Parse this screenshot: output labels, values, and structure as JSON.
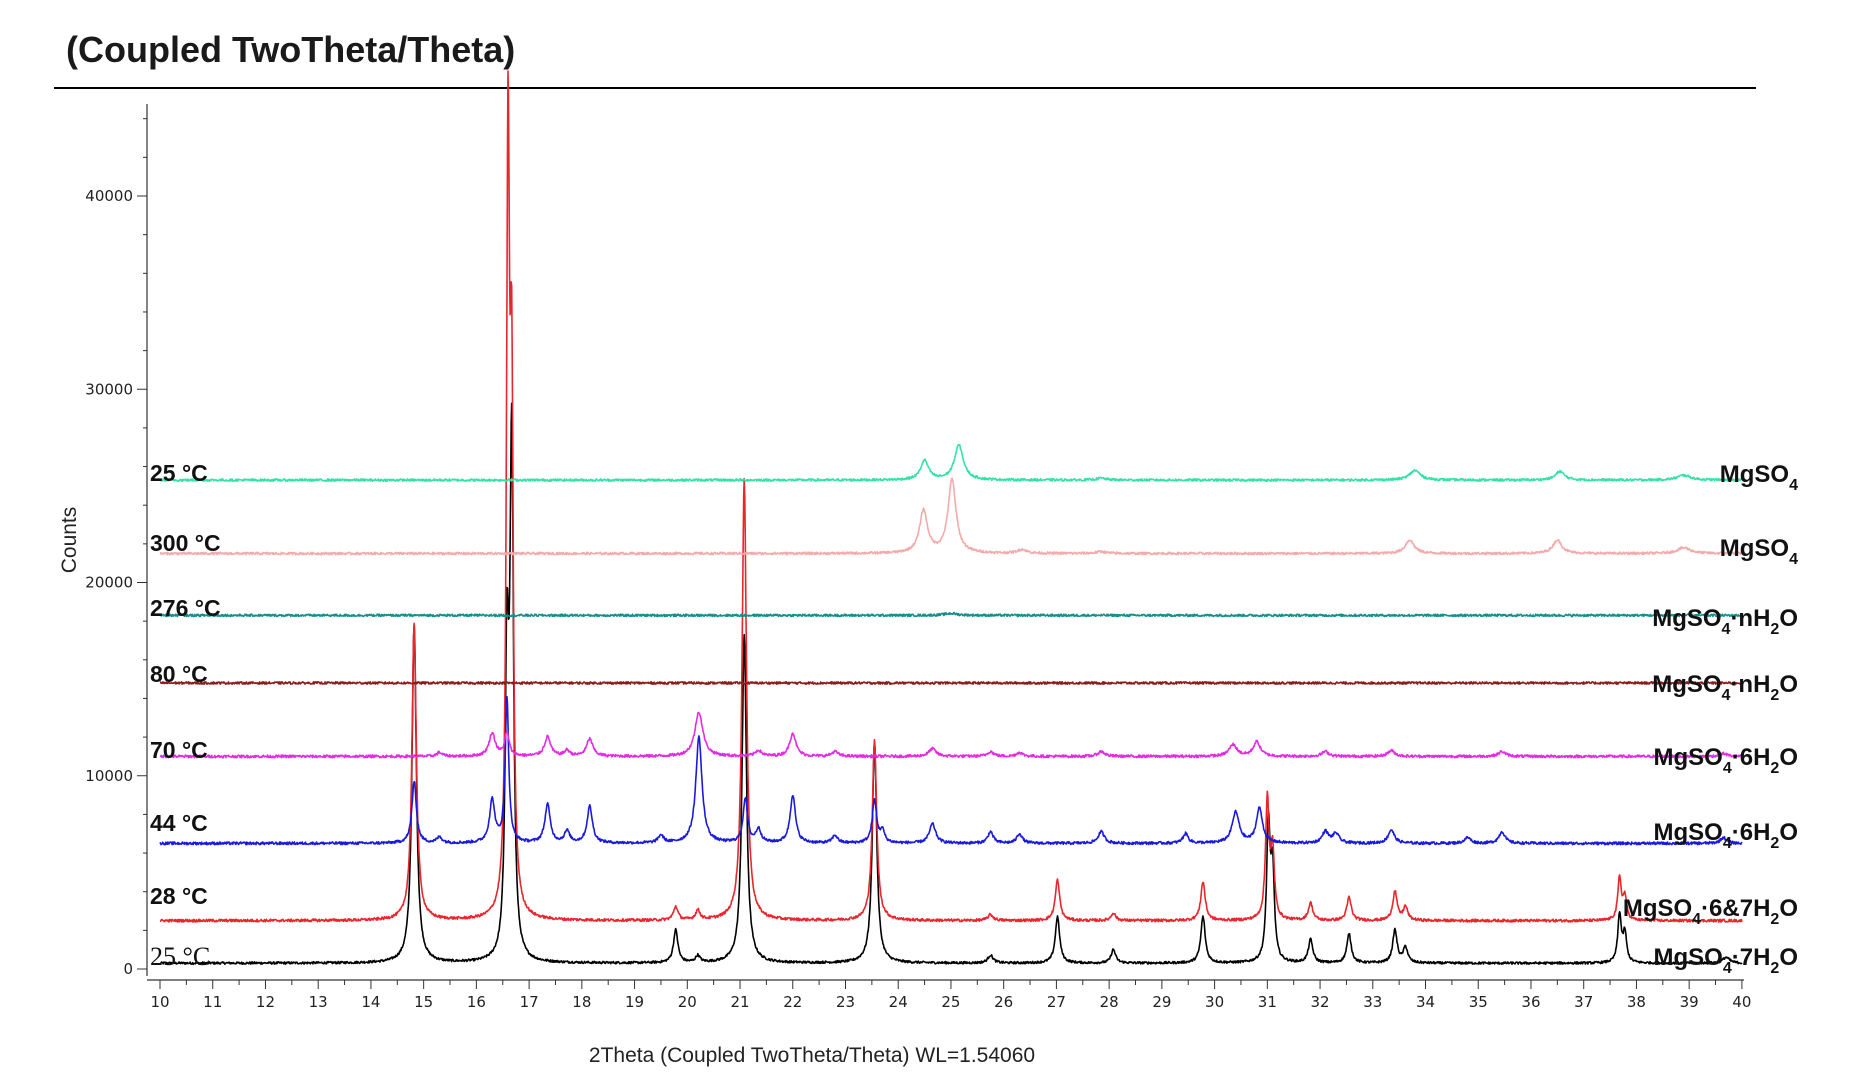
{
  "chart_data": {
    "type": "line",
    "title": "(Coupled TwoTheta/Theta)",
    "xlabel": "2Theta (Coupled TwoTheta/Theta) WL=1.54060",
    "ylabel": "Counts",
    "xlim": [
      10,
      40
    ],
    "ylim": [
      0,
      44000
    ],
    "x_ticks": [
      10,
      11,
      12,
      13,
      14,
      15,
      16,
      17,
      18,
      19,
      20,
      21,
      22,
      23,
      24,
      25,
      26,
      27,
      28,
      29,
      30,
      31,
      32,
      33,
      34,
      35,
      36,
      37,
      38,
      39,
      40
    ],
    "y_ticks": [
      0,
      10000,
      20000,
      30000,
      40000
    ],
    "y_tick_labels": [
      "0",
      "10000",
      "20000",
      "30000",
      "40000"
    ],
    "grid": false,
    "legend": "none",
    "series": [
      {
        "temperature": "25 °C",
        "phase": "MgSO₄·7H₂O",
        "color": "#000000",
        "baseline": 300,
        "noise": 60,
        "peaks": [
          [
            14.82,
            17500,
            0.05
          ],
          [
            16.58,
            15000,
            0.04
          ],
          [
            16.67,
            26500,
            0.04
          ],
          [
            19.78,
            1700,
            0.05
          ],
          [
            20.2,
            350,
            0.05
          ],
          [
            21.08,
            17000,
            0.05
          ],
          [
            23.55,
            11500,
            0.05
          ],
          [
            25.75,
            400,
            0.06
          ],
          [
            27.02,
            2400,
            0.05
          ],
          [
            28.08,
            700,
            0.05
          ],
          [
            29.78,
            2400,
            0.05
          ],
          [
            31.02,
            7000,
            0.04
          ],
          [
            31.1,
            4500,
            0.04
          ],
          [
            31.82,
            1200,
            0.05
          ],
          [
            32.55,
            1500,
            0.05
          ],
          [
            33.42,
            1700,
            0.05
          ],
          [
            33.62,
            800,
            0.05
          ],
          [
            37.68,
            2500,
            0.04
          ],
          [
            37.78,
            1500,
            0.04
          ],
          [
            39.7,
            300,
            0.08
          ]
        ]
      },
      {
        "temperature": "28 °C",
        "phase": "MgSO₄·6&7H₂O",
        "color": "#e8262c",
        "baseline": 2500,
        "noise": 70,
        "peaks": [
          [
            14.82,
            15300,
            0.05
          ],
          [
            16.6,
            39000,
            0.035
          ],
          [
            16.67,
            25000,
            0.035
          ],
          [
            19.78,
            700,
            0.05
          ],
          [
            20.2,
            500,
            0.05
          ],
          [
            21.08,
            22800,
            0.05
          ],
          [
            23.55,
            9300,
            0.05
          ],
          [
            25.75,
            300,
            0.06
          ],
          [
            27.02,
            2100,
            0.05
          ],
          [
            28.08,
            400,
            0.05
          ],
          [
            29.78,
            2000,
            0.05
          ],
          [
            31.0,
            6200,
            0.04
          ],
          [
            31.1,
            3500,
            0.04
          ],
          [
            31.82,
            900,
            0.05
          ],
          [
            32.55,
            1200,
            0.05
          ],
          [
            33.42,
            1500,
            0.05
          ],
          [
            33.62,
            700,
            0.05
          ],
          [
            37.68,
            2200,
            0.04
          ],
          [
            37.78,
            1200,
            0.04
          ]
        ]
      },
      {
        "temperature": "44 °C",
        "phase": "MgSO₄·6H₂O",
        "color": "#1a1adb",
        "baseline": 6500,
        "noise": 70,
        "peaks": [
          [
            14.82,
            3200,
            0.05
          ],
          [
            15.3,
            300,
            0.06
          ],
          [
            16.3,
            2200,
            0.06
          ],
          [
            16.58,
            7500,
            0.04
          ],
          [
            17.35,
            2000,
            0.06
          ],
          [
            17.72,
            600,
            0.06
          ],
          [
            18.15,
            1900,
            0.06
          ],
          [
            19.5,
            400,
            0.06
          ],
          [
            20.22,
            5500,
            0.07
          ],
          [
            21.1,
            2300,
            0.05
          ],
          [
            21.35,
            700,
            0.06
          ],
          [
            22.0,
            2500,
            0.06
          ],
          [
            22.8,
            400,
            0.06
          ],
          [
            23.55,
            2200,
            0.05
          ],
          [
            23.7,
            600,
            0.05
          ],
          [
            24.65,
            1000,
            0.07
          ],
          [
            25.75,
            600,
            0.06
          ],
          [
            26.3,
            500,
            0.06
          ],
          [
            27.85,
            600,
            0.07
          ],
          [
            29.45,
            500,
            0.06
          ],
          [
            30.4,
            1600,
            0.08
          ],
          [
            30.85,
            1800,
            0.07
          ],
          [
            32.1,
            600,
            0.07
          ],
          [
            32.3,
            500,
            0.07
          ],
          [
            33.35,
            700,
            0.07
          ],
          [
            34.8,
            300,
            0.07
          ],
          [
            35.45,
            600,
            0.07
          ],
          [
            39.65,
            300,
            0.07
          ]
        ]
      },
      {
        "temperature": "70 °C",
        "phase": "MgSO₄·6H₂O",
        "color": "#e12ce1",
        "baseline": 11000,
        "noise": 70,
        "peaks": [
          [
            15.3,
            200,
            0.06
          ],
          [
            16.3,
            1200,
            0.07
          ],
          [
            16.58,
            1200,
            0.05
          ],
          [
            17.35,
            1000,
            0.07
          ],
          [
            17.72,
            300,
            0.06
          ],
          [
            18.15,
            900,
            0.07
          ],
          [
            20.22,
            2300,
            0.09
          ],
          [
            21.35,
            300,
            0.07
          ],
          [
            22.0,
            1200,
            0.07
          ],
          [
            22.8,
            250,
            0.07
          ],
          [
            24.65,
            400,
            0.08
          ],
          [
            25.75,
            250,
            0.07
          ],
          [
            26.3,
            200,
            0.07
          ],
          [
            27.85,
            250,
            0.08
          ],
          [
            30.35,
            600,
            0.09
          ],
          [
            30.8,
            750,
            0.08
          ],
          [
            32.1,
            250,
            0.08
          ],
          [
            33.35,
            300,
            0.08
          ],
          [
            35.45,
            250,
            0.08
          ],
          [
            39.65,
            150,
            0.08
          ]
        ]
      },
      {
        "temperature": "80 °C",
        "phase": "MgSO₄·nH₂O",
        "color": "#8c1c1c",
        "baseline": 14800,
        "noise": 60,
        "peaks": []
      },
      {
        "temperature": "276 °C",
        "phase": "MgSO₄·nH₂O",
        "color": "#168e8e",
        "baseline": 18300,
        "noise": 60,
        "peaks": [
          [
            25.0,
            100,
            0.15
          ]
        ]
      },
      {
        "temperature": "300 °C",
        "phase": "MgSO₄",
        "color": "#f4aaaa",
        "baseline": 21500,
        "noise": 60,
        "peaks": [
          [
            24.48,
            2200,
            0.09
          ],
          [
            25.02,
            3800,
            0.09
          ],
          [
            26.35,
            200,
            0.1
          ],
          [
            27.85,
            100,
            0.1
          ],
          [
            33.7,
            700,
            0.1
          ],
          [
            36.5,
            700,
            0.1
          ],
          [
            38.9,
            300,
            0.15
          ]
        ]
      },
      {
        "temperature": "25 °C",
        "phase": "MgSO₄",
        "color": "#33e2a4",
        "baseline": 25300,
        "noise": 60,
        "peaks": [
          [
            24.5,
            1000,
            0.09
          ],
          [
            25.15,
            1800,
            0.1
          ],
          [
            27.85,
            100,
            0.1
          ],
          [
            33.8,
            500,
            0.12
          ],
          [
            36.55,
            450,
            0.1
          ],
          [
            38.9,
            250,
            0.15
          ]
        ]
      }
    ]
  }
}
